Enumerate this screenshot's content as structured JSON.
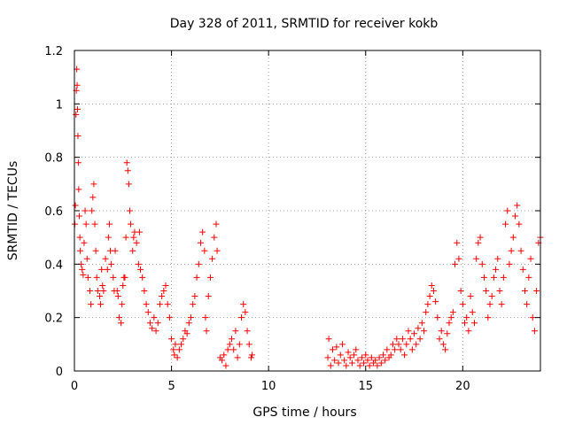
{
  "chart_data": {
    "type": "scatter",
    "title": "Day 328 of 2011, SRMTID for receiver kokb",
    "xlabel": "GPS time / hours",
    "ylabel": "SRMTID / TECUs",
    "xlim": [
      0,
      24
    ],
    "ylim": [
      0,
      1.2
    ],
    "xticks": [
      0,
      5,
      10,
      15,
      20
    ],
    "yticks": [
      0,
      0.2,
      0.4,
      0.6,
      0.8,
      1,
      1.2
    ],
    "grid": true,
    "marker": "+",
    "color": "#ff0000",
    "series": [
      {
        "name": "SRMTID",
        "points": [
          [
            0.02,
            0.55
          ],
          [
            0.05,
            0.62
          ],
          [
            0.08,
            0.96
          ],
          [
            0.1,
            1.05
          ],
          [
            0.12,
            1.13
          ],
          [
            0.14,
            1.07
          ],
          [
            0.16,
            0.98
          ],
          [
            0.18,
            0.88
          ],
          [
            0.2,
            0.78
          ],
          [
            0.22,
            0.68
          ],
          [
            0.25,
            0.58
          ],
          [
            0.28,
            0.5
          ],
          [
            0.3,
            0.45
          ],
          [
            0.35,
            0.4
          ],
          [
            0.4,
            0.38
          ],
          [
            0.45,
            0.36
          ],
          [
            0.5,
            0.48
          ],
          [
            0.55,
            0.6
          ],
          [
            0.6,
            0.55
          ],
          [
            0.65,
            0.42
          ],
          [
            0.7,
            0.35
          ],
          [
            0.8,
            0.3
          ],
          [
            0.85,
            0.25
          ],
          [
            0.9,
            0.6
          ],
          [
            0.95,
            0.65
          ],
          [
            1.0,
            0.7
          ],
          [
            1.05,
            0.55
          ],
          [
            1.1,
            0.45
          ],
          [
            1.15,
            0.35
          ],
          [
            1.2,
            0.3
          ],
          [
            1.3,
            0.28
          ],
          [
            1.35,
            0.25
          ],
          [
            1.4,
            0.38
          ],
          [
            1.45,
            0.32
          ],
          [
            1.5,
            0.3
          ],
          [
            1.6,
            0.42
          ],
          [
            1.7,
            0.38
          ],
          [
            1.75,
            0.5
          ],
          [
            1.8,
            0.55
          ],
          [
            1.85,
            0.45
          ],
          [
            1.9,
            0.4
          ],
          [
            2.0,
            0.35
          ],
          [
            2.05,
            0.3
          ],
          [
            2.1,
            0.45
          ],
          [
            2.2,
            0.3
          ],
          [
            2.25,
            0.28
          ],
          [
            2.3,
            0.2
          ],
          [
            2.4,
            0.18
          ],
          [
            2.45,
            0.25
          ],
          [
            2.5,
            0.32
          ],
          [
            2.55,
            0.35
          ],
          [
            2.6,
            0.35
          ],
          [
            2.65,
            0.5
          ],
          [
            2.7,
            0.78
          ],
          [
            2.75,
            0.75
          ],
          [
            2.8,
            0.7
          ],
          [
            2.85,
            0.6
          ],
          [
            2.9,
            0.55
          ],
          [
            3.0,
            0.45
          ],
          [
            3.05,
            0.5
          ],
          [
            3.1,
            0.52
          ],
          [
            3.2,
            0.48
          ],
          [
            3.3,
            0.4
          ],
          [
            3.35,
            0.52
          ],
          [
            3.4,
            0.38
          ],
          [
            3.5,
            0.35
          ],
          [
            3.6,
            0.3
          ],
          [
            3.7,
            0.25
          ],
          [
            3.8,
            0.22
          ],
          [
            3.9,
            0.18
          ],
          [
            4.0,
            0.16
          ],
          [
            4.1,
            0.2
          ],
          [
            4.2,
            0.15
          ],
          [
            4.3,
            0.18
          ],
          [
            4.4,
            0.25
          ],
          [
            4.5,
            0.28
          ],
          [
            4.6,
            0.3
          ],
          [
            4.7,
            0.32
          ],
          [
            4.8,
            0.25
          ],
          [
            4.9,
            0.2
          ],
          [
            5.0,
            0.12
          ],
          [
            5.1,
            0.08
          ],
          [
            5.15,
            0.06
          ],
          [
            5.2,
            0.1
          ],
          [
            5.3,
            0.05
          ],
          [
            5.4,
            0.08
          ],
          [
            5.5,
            0.1
          ],
          [
            5.6,
            0.12
          ],
          [
            5.7,
            0.15
          ],
          [
            5.8,
            0.14
          ],
          [
            5.9,
            0.18
          ],
          [
            6.0,
            0.2
          ],
          [
            6.1,
            0.25
          ],
          [
            6.2,
            0.28
          ],
          [
            6.3,
            0.35
          ],
          [
            6.4,
            0.4
          ],
          [
            6.5,
            0.48
          ],
          [
            6.6,
            0.52
          ],
          [
            6.7,
            0.45
          ],
          [
            6.75,
            0.2
          ],
          [
            6.8,
            0.15
          ],
          [
            6.9,
            0.28
          ],
          [
            7.0,
            0.35
          ],
          [
            7.1,
            0.42
          ],
          [
            7.2,
            0.5
          ],
          [
            7.3,
            0.55
          ],
          [
            7.35,
            0.45
          ],
          [
            7.5,
            0.05
          ],
          [
            7.6,
            0.04
          ],
          [
            7.7,
            0.06
          ],
          [
            7.8,
            0.02
          ],
          [
            7.9,
            0.08
          ],
          [
            8.0,
            0.1
          ],
          [
            8.1,
            0.12
          ],
          [
            8.2,
            0.08
          ],
          [
            8.3,
            0.15
          ],
          [
            8.4,
            0.05
          ],
          [
            8.5,
            0.1
          ],
          [
            8.6,
            0.2
          ],
          [
            8.7,
            0.25
          ],
          [
            8.8,
            0.22
          ],
          [
            8.9,
            0.15
          ],
          [
            9.0,
            0.1
          ],
          [
            9.1,
            0.05
          ],
          [
            9.15,
            0.06
          ],
          [
            13.05,
            0.05
          ],
          [
            13.1,
            0.12
          ],
          [
            13.2,
            0.02
          ],
          [
            13.3,
            0.08
          ],
          [
            13.4,
            0.04
          ],
          [
            13.5,
            0.09
          ],
          [
            13.6,
            0.03
          ],
          [
            13.7,
            0.06
          ],
          [
            13.8,
            0.1
          ],
          [
            13.9,
            0.04
          ],
          [
            14.0,
            0.02
          ],
          [
            14.1,
            0.07
          ],
          [
            14.2,
            0.05
          ],
          [
            14.3,
            0.03
          ],
          [
            14.4,
            0.06
          ],
          [
            14.5,
            0.08
          ],
          [
            14.6,
            0.04
          ],
          [
            14.7,
            0.02
          ],
          [
            14.8,
            0.05
          ],
          [
            14.9,
            0.03
          ],
          [
            15.0,
            0.06
          ],
          [
            15.1,
            0.04
          ],
          [
            15.2,
            0.02
          ],
          [
            15.3,
            0.05
          ],
          [
            15.4,
            0.03
          ],
          [
            15.5,
            0.04
          ],
          [
            15.6,
            0.02
          ],
          [
            15.7,
            0.05
          ],
          [
            15.8,
            0.03
          ],
          [
            15.9,
            0.06
          ],
          [
            16.0,
            0.04
          ],
          [
            16.1,
            0.08
          ],
          [
            16.2,
            0.05
          ],
          [
            16.3,
            0.06
          ],
          [
            16.4,
            0.1
          ],
          [
            16.5,
            0.08
          ],
          [
            16.6,
            0.12
          ],
          [
            16.7,
            0.1
          ],
          [
            16.8,
            0.08
          ],
          [
            16.9,
            0.12
          ],
          [
            17.0,
            0.06
          ],
          [
            17.1,
            0.1
          ],
          [
            17.2,
            0.15
          ],
          [
            17.3,
            0.12
          ],
          [
            17.4,
            0.08
          ],
          [
            17.5,
            0.14
          ],
          [
            17.6,
            0.1
          ],
          [
            17.7,
            0.16
          ],
          [
            17.8,
            0.12
          ],
          [
            17.9,
            0.18
          ],
          [
            18.0,
            0.15
          ],
          [
            18.1,
            0.22
          ],
          [
            18.2,
            0.25
          ],
          [
            18.3,
            0.28
          ],
          [
            18.4,
            0.32
          ],
          [
            18.5,
            0.3
          ],
          [
            18.6,
            0.26
          ],
          [
            18.7,
            0.2
          ],
          [
            18.8,
            0.12
          ],
          [
            18.9,
            0.15
          ],
          [
            19.0,
            0.1
          ],
          [
            19.1,
            0.08
          ],
          [
            19.2,
            0.14
          ],
          [
            19.3,
            0.18
          ],
          [
            19.4,
            0.2
          ],
          [
            19.5,
            0.22
          ],
          [
            19.6,
            0.4
          ],
          [
            19.7,
            0.48
          ],
          [
            19.8,
            0.42
          ],
          [
            19.9,
            0.3
          ],
          [
            20.0,
            0.25
          ],
          [
            20.1,
            0.18
          ],
          [
            20.2,
            0.2
          ],
          [
            20.3,
            0.15
          ],
          [
            20.4,
            0.28
          ],
          [
            20.5,
            0.22
          ],
          [
            20.6,
            0.18
          ],
          [
            20.7,
            0.42
          ],
          [
            20.8,
            0.48
          ],
          [
            20.9,
            0.5
          ],
          [
            21.0,
            0.4
          ],
          [
            21.1,
            0.35
          ],
          [
            21.2,
            0.3
          ],
          [
            21.3,
            0.2
          ],
          [
            21.4,
            0.25
          ],
          [
            21.5,
            0.28
          ],
          [
            21.6,
            0.35
          ],
          [
            21.7,
            0.38
          ],
          [
            21.8,
            0.42
          ],
          [
            21.9,
            0.3
          ],
          [
            22.0,
            0.25
          ],
          [
            22.1,
            0.35
          ],
          [
            22.2,
            0.55
          ],
          [
            22.3,
            0.6
          ],
          [
            22.4,
            0.4
          ],
          [
            22.5,
            0.45
          ],
          [
            22.6,
            0.5
          ],
          [
            22.7,
            0.58
          ],
          [
            22.8,
            0.62
          ],
          [
            22.9,
            0.55
          ],
          [
            23.0,
            0.45
          ],
          [
            23.1,
            0.38
          ],
          [
            23.2,
            0.3
          ],
          [
            23.3,
            0.25
          ],
          [
            23.4,
            0.35
          ],
          [
            23.5,
            0.42
          ],
          [
            23.6,
            0.2
          ],
          [
            23.7,
            0.15
          ],
          [
            23.8,
            0.3
          ],
          [
            23.9,
            0.48
          ],
          [
            24.0,
            0.5
          ]
        ]
      }
    ]
  }
}
